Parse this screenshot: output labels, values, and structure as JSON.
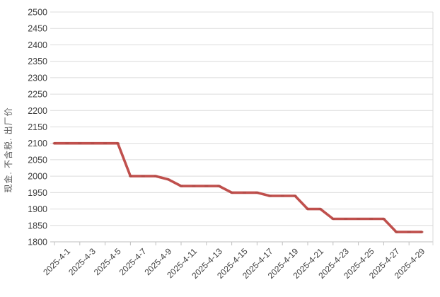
{
  "chart_data": {
    "type": "line",
    "title": "",
    "xlabel": "",
    "ylabel": "现金. 不含税. 出厂价",
    "x": [
      "2025-4-1",
      "2025-4-2",
      "2025-4-3",
      "2025-4-4",
      "2025-4-5",
      "2025-4-6",
      "2025-4-7",
      "2025-4-8",
      "2025-4-9",
      "2025-4-10",
      "2025-4-11",
      "2025-4-12",
      "2025-4-13",
      "2025-4-14",
      "2025-4-15",
      "2025-4-16",
      "2025-4-17",
      "2025-4-18",
      "2025-4-19",
      "2025-4-20",
      "2025-4-21",
      "2025-4-22",
      "2025-4-23",
      "2025-4-24",
      "2025-4-25",
      "2025-4-26",
      "2025-4-27",
      "2025-4-28",
      "2025-4-29",
      "2025-4-30"
    ],
    "values": [
      2100,
      2100,
      2100,
      2100,
      2100,
      2100,
      2000,
      2000,
      2000,
      1990,
      1970,
      1970,
      1970,
      1970,
      1950,
      1950,
      1950,
      1940,
      1940,
      1940,
      1900,
      1900,
      1870,
      1870,
      1870,
      1870,
      1870,
      1830,
      1830,
      1830
    ],
    "x_tick_labels": [
      "2025-4-1",
      "2025-4-3",
      "2025-4-5",
      "2025-4-7",
      "2025-4-9",
      "2025-4-11",
      "2025-4-13",
      "2025-4-15",
      "2025-4-17",
      "2025-4-19",
      "2025-4-21",
      "2025-4-23",
      "2025-4-25",
      "2025-4-27",
      "2025-4-29"
    ],
    "y_ticks": [
      1800,
      1850,
      1900,
      1950,
      2000,
      2050,
      2100,
      2150,
      2200,
      2250,
      2300,
      2350,
      2400,
      2450,
      2500
    ],
    "ylim": [
      1800,
      2500
    ],
    "grid": "horizontal",
    "legend": false,
    "line_color": "#C0504D",
    "marker_color": "#A84743"
  }
}
